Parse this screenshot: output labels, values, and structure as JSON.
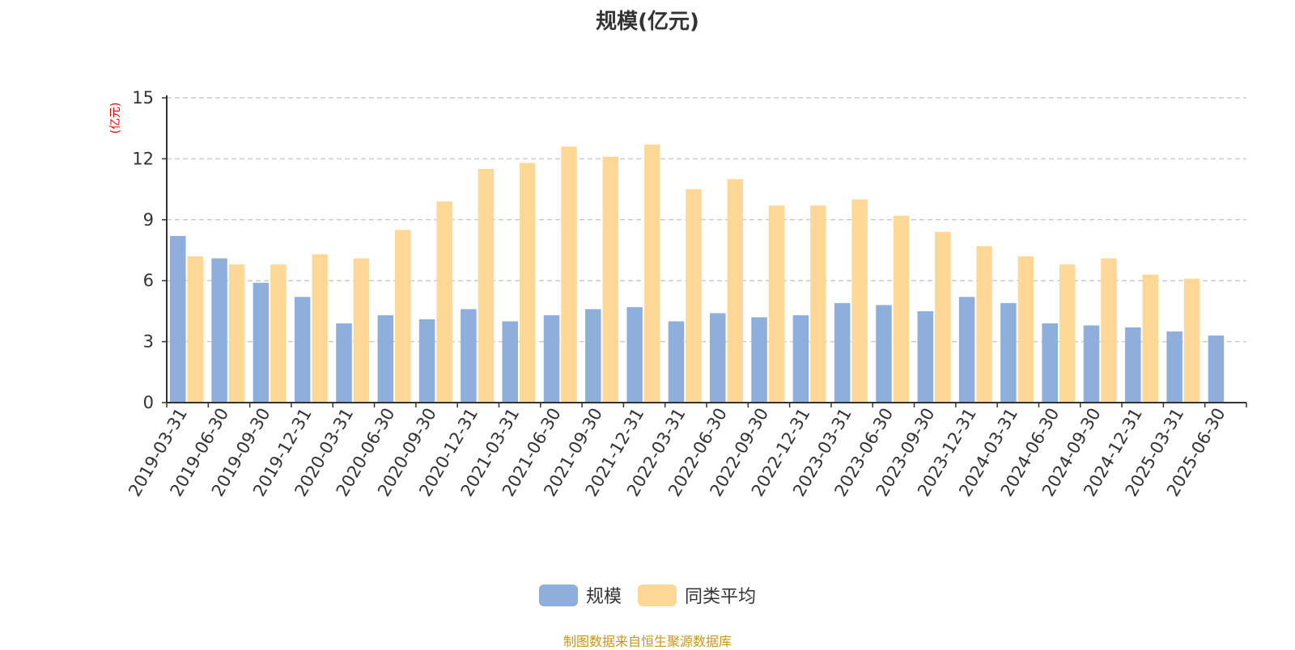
{
  "chart_data": {
    "type": "bar",
    "title": "规模(亿元)",
    "ylabel": "(亿元)",
    "xlabel": "",
    "ylim": [
      0,
      15
    ],
    "yticks": [
      0,
      3,
      6,
      9,
      12,
      15
    ],
    "grid": true,
    "legend_position": "bottom",
    "categories": [
      "2019-03-31",
      "2019-06-30",
      "2019-09-30",
      "2019-12-31",
      "2020-03-31",
      "2020-06-30",
      "2020-09-30",
      "2020-12-31",
      "2021-03-31",
      "2021-06-30",
      "2021-09-30",
      "2021-12-31",
      "2022-03-31",
      "2022-06-30",
      "2022-09-30",
      "2022-12-31",
      "2023-03-31",
      "2023-06-30",
      "2023-09-30",
      "2023-12-31",
      "2024-03-31",
      "2024-06-30",
      "2024-09-30",
      "2024-12-31",
      "2025-03-31",
      "2025-06-30"
    ],
    "series": [
      {
        "name": "规模",
        "color": "#8eaedb",
        "values": [
          8.2,
          7.1,
          5.9,
          5.2,
          3.9,
          4.3,
          4.1,
          4.6,
          4.0,
          4.3,
          4.6,
          4.7,
          4.0,
          4.4,
          4.2,
          4.3,
          4.9,
          4.8,
          4.5,
          5.2,
          4.9,
          3.9,
          3.8,
          3.7,
          3.5,
          3.3
        ]
      },
      {
        "name": "同类平均",
        "color": "#ffd898",
        "values": [
          7.2,
          6.8,
          6.8,
          7.3,
          7.1,
          8.5,
          9.9,
          11.5,
          11.8,
          12.6,
          12.1,
          12.7,
          10.5,
          11.0,
          9.7,
          9.7,
          10.0,
          9.2,
          8.4,
          7.7,
          7.2,
          6.8,
          7.1,
          6.3,
          6.1,
          null
        ]
      }
    ]
  },
  "legend": {
    "items": [
      {
        "label": "规模",
        "color": "#8eaedb"
      },
      {
        "label": "同类平均",
        "color": "#ffd898"
      }
    ]
  },
  "footer": {
    "source": "制图数据来自恒生聚源数据库"
  },
  "colors": {
    "axis": "#333333",
    "grid": "#cccccc",
    "ylabel": "#e60000"
  }
}
